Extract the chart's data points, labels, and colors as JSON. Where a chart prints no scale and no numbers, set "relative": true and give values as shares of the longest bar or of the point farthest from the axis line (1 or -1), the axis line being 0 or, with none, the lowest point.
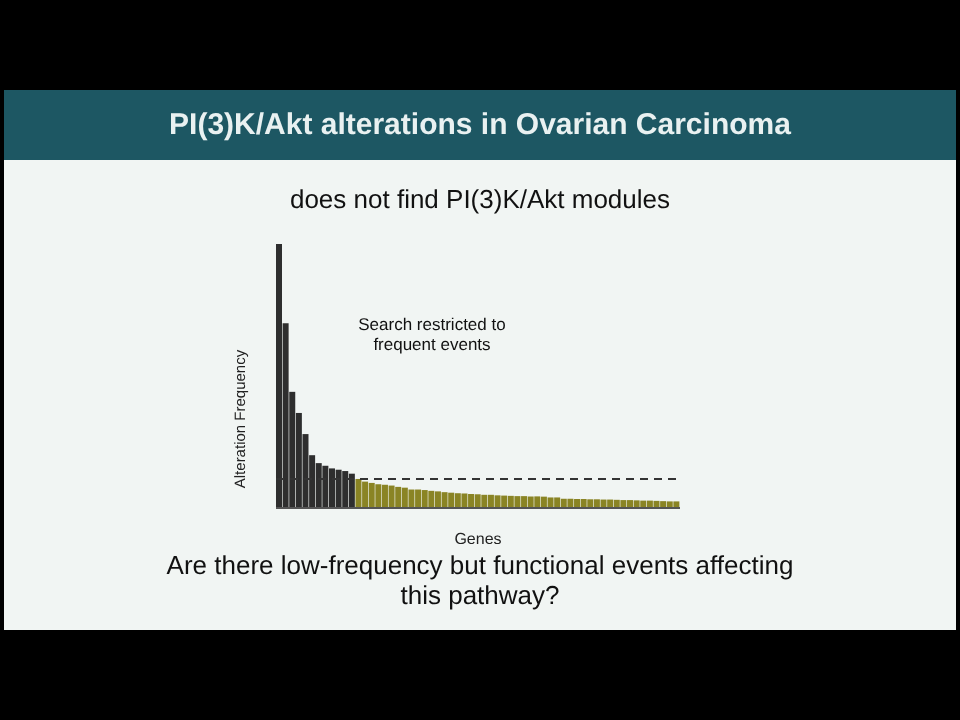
{
  "chart_data": {
    "type": "bar",
    "title": "PI(3)K/Akt alterations in Ovarian Carcinoma",
    "subtitle": "does not find PI(3)K/Akt modules",
    "xlabel": "Genes",
    "ylabel": "Alteration Frequency",
    "relative": true,
    "categories": [
      null,
      null,
      null,
      null,
      null,
      null,
      null,
      null,
      null,
      null,
      null,
      null,
      null,
      null,
      null,
      null,
      null,
      null,
      null,
      null,
      null,
      null,
      null,
      null,
      null,
      null,
      null,
      null,
      null,
      null,
      null,
      null,
      null,
      null,
      null,
      null,
      null,
      null,
      null,
      null,
      null,
      null,
      null,
      null,
      null,
      null,
      null,
      null,
      null,
      null,
      null,
      null,
      null,
      null,
      null,
      null,
      null,
      null,
      null,
      null,
      null
    ],
    "values": [
      1.0,
      0.7,
      0.44,
      0.36,
      0.28,
      0.2,
      0.17,
      0.16,
      0.15,
      0.145,
      0.14,
      0.13,
      0.11,
      0.1,
      0.095,
      0.09,
      0.088,
      0.085,
      0.08,
      0.077,
      0.07,
      0.07,
      0.068,
      0.065,
      0.063,
      0.06,
      0.058,
      0.056,
      0.055,
      0.053,
      0.052,
      0.05,
      0.05,
      0.048,
      0.047,
      0.046,
      0.045,
      0.045,
      0.044,
      0.044,
      0.043,
      0.04,
      0.04,
      0.035,
      0.035,
      0.034,
      0.034,
      0.033,
      0.033,
      0.032,
      0.032,
      0.031,
      0.03,
      0.03,
      0.029,
      0.028,
      0.028,
      0.027,
      0.026,
      0.025,
      0.025
    ],
    "colors": [
      "#2e2e2e",
      "#2e2e2e",
      "#2e2e2e",
      "#2e2e2e",
      "#2e2e2e",
      "#2e2e2e",
      "#2e2e2e",
      "#2e2e2e",
      "#2e2e2e",
      "#2e2e2e",
      "#2e2e2e",
      "#2e2e2e",
      "#8a8424",
      "#8a8424",
      "#8a8424",
      "#8a8424",
      "#8a8424",
      "#8a8424",
      "#8a8424",
      "#8a8424",
      "#8a8424",
      "#8a8424",
      "#8a8424",
      "#8a8424",
      "#8a8424",
      "#8a8424",
      "#8a8424",
      "#8a8424",
      "#8a8424",
      "#8a8424",
      "#8a8424",
      "#8a8424",
      "#8a8424",
      "#8a8424",
      "#8a8424",
      "#8a8424",
      "#8a8424",
      "#8a8424",
      "#8a8424",
      "#8a8424",
      "#8a8424",
      "#8a8424",
      "#8a8424",
      "#8a8424",
      "#8a8424",
      "#8a8424",
      "#8a8424",
      "#8a8424",
      "#8a8424",
      "#8a8424",
      "#8a8424",
      "#8a8424",
      "#8a8424",
      "#8a8424",
      "#8a8424",
      "#8a8424",
      "#8a8424",
      "#8a8424",
      "#8a8424",
      "#8a8424",
      "#8a8424"
    ],
    "ref_lines": [
      {
        "axis": "y",
        "value": 0.11,
        "color": "#333333",
        "line_style": "dashed"
      }
    ],
    "annotations": [
      "Search restricted to frequent events",
      "Are there low-frequency but functional events affecting this pathway?"
    ]
  }
}
